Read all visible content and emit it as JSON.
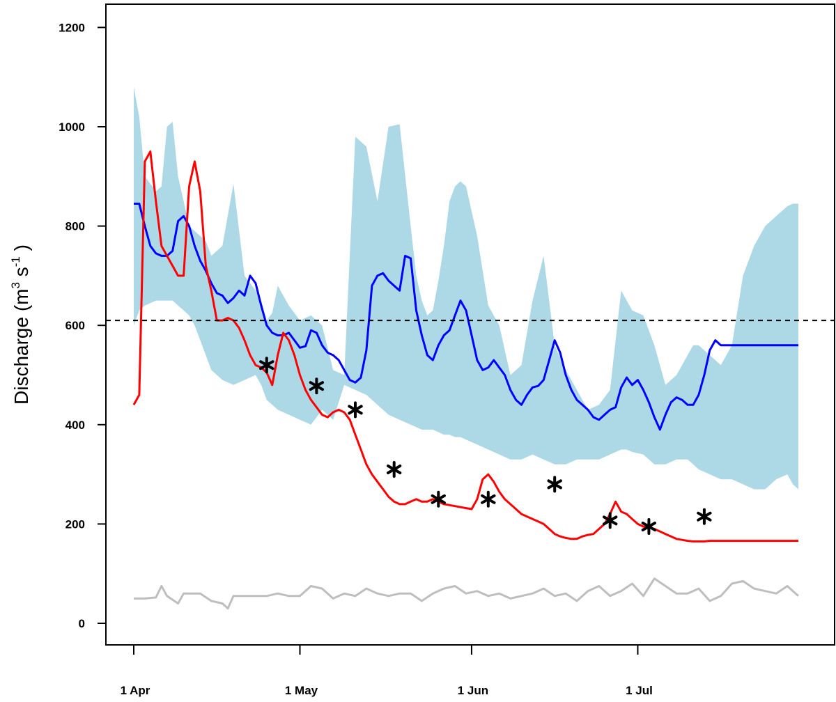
{
  "chart_data": {
    "type": "line",
    "title": "",
    "xlabel": "",
    "ylabel": "Discharge (m³ s⁻¹)",
    "ylabel_parts": {
      "main": "Discharge (m",
      "sup1": "3",
      "mid": " s",
      "sup2": "-1",
      "end": " )"
    },
    "ylim": [
      -45,
      1245
    ],
    "xlim": [
      "1 Apr",
      "17 Jul"
    ],
    "grid": false,
    "legend": "none",
    "x_ticks": [
      {
        "label": "1 Apr",
        "day": 0
      },
      {
        "label": "1 May",
        "day": 30
      },
      {
        "label": "1 Jun",
        "day": 61
      },
      {
        "label": "1 Jul",
        "day": 91
      }
    ],
    "y_ticks": [
      0,
      200,
      400,
      600,
      800,
      1000,
      1200
    ],
    "threshold": 610,
    "x_unit": "days from 1 Apr",
    "band": {
      "name": "range",
      "color": "#add8e6",
      "x": [
        0,
        1,
        2,
        4,
        5,
        6,
        7,
        8,
        9,
        10,
        11,
        12,
        13,
        14,
        16,
        18,
        20,
        22,
        23,
        24,
        25,
        26,
        28,
        30,
        32,
        34,
        36,
        38,
        40,
        42,
        44,
        46,
        48,
        50,
        51,
        52,
        53,
        54,
        55,
        56,
        57,
        58,
        59,
        60,
        62,
        64,
        66,
        68,
        70,
        72,
        74,
        76,
        78,
        80,
        82,
        84,
        86,
        88,
        89,
        90,
        92,
        94,
        96,
        98,
        100,
        101,
        102,
        104,
        106,
        108,
        110,
        112,
        114,
        116,
        118,
        119,
        120
      ],
      "upper": [
        1080,
        1020,
        900,
        870,
        880,
        1000,
        1010,
        900,
        850,
        800,
        790,
        780,
        770,
        740,
        760,
        885,
        700,
        670,
        650,
        610,
        625,
        680,
        640,
        610,
        620,
        600,
        510,
        500,
        980,
        960,
        850,
        1000,
        1005,
        800,
        700,
        650,
        620,
        630,
        690,
        760,
        850,
        880,
        890,
        880,
        780,
        640,
        600,
        500,
        520,
        650,
        740,
        560,
        510,
        470,
        430,
        440,
        470,
        670,
        650,
        630,
        620,
        560,
        480,
        500,
        540,
        560,
        560,
        540,
        520,
        560,
        700,
        760,
        800,
        820,
        840,
        845,
        845
      ],
      "lower": [
        600,
        630,
        640,
        650,
        650,
        650,
        650,
        640,
        630,
        620,
        600,
        570,
        540,
        510,
        490,
        480,
        490,
        500,
        480,
        450,
        440,
        430,
        420,
        410,
        400,
        430,
        410,
        480,
        470,
        460,
        440,
        420,
        410,
        400,
        395,
        390,
        390,
        390,
        385,
        380,
        380,
        375,
        375,
        370,
        360,
        350,
        340,
        330,
        330,
        340,
        330,
        320,
        320,
        330,
        330,
        330,
        340,
        350,
        350,
        345,
        340,
        320,
        320,
        330,
        330,
        320,
        310,
        300,
        290,
        290,
        280,
        270,
        270,
        290,
        300,
        280,
        270
      ]
    },
    "series": [
      {
        "name": "",
        "color": "#0000ff",
        "x": [
          0,
          1,
          2,
          3,
          4,
          5,
          6,
          7,
          8,
          9,
          10,
          11,
          12,
          13,
          14,
          15,
          16,
          17,
          18,
          19,
          20,
          21,
          22,
          23,
          24,
          25,
          26,
          27,
          28,
          29,
          30,
          31,
          32,
          33,
          34,
          35,
          36,
          37,
          38,
          39,
          40,
          41,
          42,
          43,
          44,
          45,
          46,
          47,
          48,
          49,
          50,
          51,
          52,
          53,
          54,
          55,
          56,
          57,
          58,
          59,
          60,
          61,
          62,
          63,
          64,
          65,
          66,
          67,
          68,
          69,
          70,
          71,
          72,
          73,
          74,
          75,
          76,
          77,
          78,
          79,
          80,
          81,
          82,
          83,
          84,
          85,
          86,
          87,
          88,
          89,
          90,
          91,
          92,
          93,
          94,
          95,
          96,
          97,
          98,
          99,
          100,
          101,
          102,
          103,
          104,
          105,
          106,
          107,
          108,
          109,
          110,
          111,
          112,
          113,
          114,
          115,
          116,
          117,
          118,
          119,
          120
        ],
        "values": [
          845,
          845,
          800,
          760,
          745,
          740,
          740,
          750,
          810,
          820,
          800,
          760,
          730,
          710,
          685,
          665,
          660,
          645,
          655,
          670,
          660,
          700,
          685,
          640,
          600,
          585,
          580,
          580,
          585,
          570,
          555,
          558,
          590,
          585,
          560,
          545,
          540,
          530,
          510,
          490,
          485,
          495,
          550,
          680,
          700,
          705,
          690,
          680,
          670,
          740,
          735,
          630,
          580,
          540,
          530,
          560,
          580,
          590,
          620,
          650,
          630,
          580,
          530,
          510,
          515,
          530,
          515,
          500,
          470,
          450,
          440,
          460,
          475,
          478,
          490,
          530,
          570,
          545,
          500,
          470,
          450,
          440,
          430,
          415,
          410,
          420,
          430,
          435,
          475,
          495,
          480,
          490,
          470,
          445,
          415,
          390,
          420,
          445,
          455,
          450,
          440,
          440,
          460,
          500,
          550,
          570,
          560,
          560,
          560,
          560,
          560,
          560,
          560,
          560,
          560,
          560,
          560,
          560,
          560,
          560,
          560
        ]
      },
      {
        "name": "",
        "color": "#ff0000",
        "x": [
          0,
          1,
          2,
          3,
          4,
          5,
          6,
          7,
          8,
          9,
          10,
          11,
          12,
          13,
          14,
          15,
          16,
          17,
          18,
          19,
          20,
          21,
          22,
          23,
          24,
          25,
          26,
          27,
          28,
          29,
          30,
          31,
          32,
          33,
          34,
          35,
          36,
          37,
          38,
          39,
          40,
          41,
          42,
          43,
          44,
          45,
          46,
          47,
          48,
          49,
          50,
          51,
          52,
          53,
          54,
          55,
          56,
          57,
          58,
          59,
          60,
          61,
          62,
          63,
          64,
          65,
          66,
          67,
          68,
          69,
          70,
          71,
          72,
          73,
          74,
          75,
          76,
          77,
          78,
          79,
          80,
          81,
          82,
          83,
          84,
          85,
          86,
          87,
          88,
          89,
          90,
          91,
          92,
          93,
          94,
          95,
          96,
          97,
          98,
          99,
          100,
          101,
          102,
          103,
          104,
          105,
          106,
          107,
          108,
          109,
          110,
          111,
          112,
          113,
          114,
          115,
          116,
          117,
          118,
          119,
          120
        ],
        "values": [
          440,
          460,
          930,
          950,
          850,
          760,
          740,
          720,
          700,
          700,
          880,
          930,
          870,
          720,
          670,
          610,
          610,
          615,
          610,
          595,
          570,
          540,
          520,
          515,
          505,
          480,
          540,
          585,
          570,
          540,
          500,
          470,
          450,
          435,
          420,
          415,
          425,
          430,
          425,
          410,
          380,
          350,
          320,
          300,
          285,
          270,
          255,
          245,
          240,
          240,
          245,
          250,
          245,
          245,
          250,
          245,
          240,
          238,
          236,
          234,
          232,
          230,
          250,
          290,
          300,
          285,
          265,
          250,
          240,
          230,
          220,
          215,
          210,
          205,
          200,
          190,
          180,
          175,
          172,
          170,
          170,
          175,
          178,
          180,
          190,
          200,
          220,
          245,
          225,
          220,
          210,
          200,
          195,
          193,
          190,
          185,
          180,
          175,
          170,
          168,
          166,
          165,
          165,
          165,
          166,
          166,
          166,
          166,
          166,
          166,
          166,
          166,
          166,
          166,
          166,
          166,
          166,
          166,
          166,
          166,
          166
        ]
      },
      {
        "name": "",
        "color": "#bebebe",
        "x": [
          0,
          2,
          4,
          5,
          6,
          8,
          9,
          10,
          12,
          14,
          16,
          17,
          18,
          20,
          22,
          24,
          26,
          28,
          30,
          32,
          34,
          36,
          38,
          40,
          42,
          44,
          46,
          48,
          50,
          52,
          54,
          56,
          58,
          60,
          62,
          64,
          66,
          68,
          70,
          72,
          74,
          76,
          78,
          80,
          82,
          84,
          86,
          88,
          90,
          92,
          94,
          96,
          98,
          100,
          102,
          104,
          106,
          108,
          110,
          112,
          114,
          116,
          118,
          120
        ],
        "values": [
          50,
          50,
          52,
          75,
          55,
          40,
          60,
          60,
          60,
          45,
          40,
          30,
          55,
          55,
          55,
          55,
          60,
          55,
          55,
          75,
          70,
          50,
          60,
          55,
          70,
          60,
          55,
          60,
          60,
          45,
          60,
          70,
          75,
          60,
          65,
          55,
          60,
          50,
          55,
          60,
          70,
          55,
          60,
          45,
          65,
          75,
          55,
          65,
          80,
          55,
          90,
          75,
          60,
          60,
          70,
          45,
          55,
          80,
          85,
          70,
          65,
          60,
          75,
          55
        ]
      }
    ],
    "stars": [
      {
        "day": 24,
        "value": 520
      },
      {
        "day": 33,
        "value": 478
      },
      {
        "day": 40,
        "value": 430
      },
      {
        "day": 47,
        "value": 310
      },
      {
        "day": 55,
        "value": 250
      },
      {
        "day": 64,
        "value": 250
      },
      {
        "day": 76,
        "value": 280
      },
      {
        "day": 86,
        "value": 207
      },
      {
        "day": 93,
        "value": 195
      },
      {
        "day": 103,
        "value": 215
      }
    ]
  }
}
